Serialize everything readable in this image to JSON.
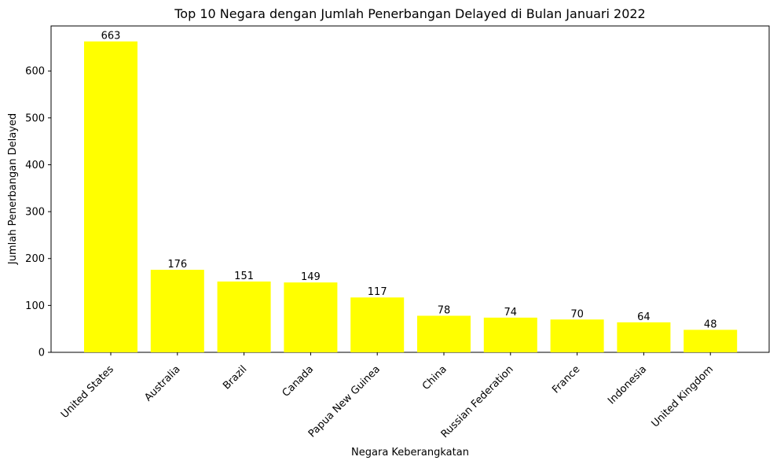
{
  "chart_data": {
    "type": "bar",
    "title": "Top 10 Negara dengan Jumlah Penerbangan Delayed di Bulan Januari 2022",
    "xlabel": "Negara Keberangkatan",
    "ylabel": "Jumlah Penerbangan Delayed",
    "categories": [
      "United States",
      "Australia",
      "Brazil",
      "Canada",
      "Papua New Guinea",
      "China",
      "Russian Federation",
      "France",
      "Indonesia",
      "United Kingdom"
    ],
    "values": [
      663,
      176,
      151,
      149,
      117,
      78,
      74,
      70,
      64,
      48
    ],
    "yticks": [
      0,
      100,
      200,
      300,
      400,
      500,
      600
    ],
    "ylim": [
      0,
      696
    ],
    "bar_color": "#ffff00",
    "grid": false,
    "legend": "none"
  }
}
